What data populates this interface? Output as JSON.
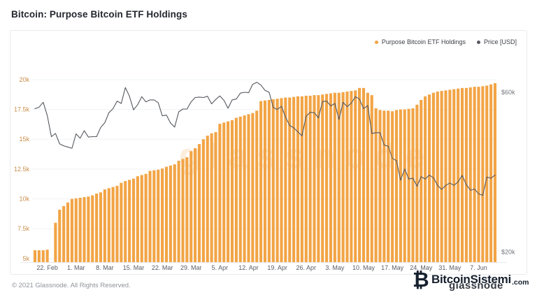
{
  "page": {
    "title": "Bitcoin: Purpose Bitcoin ETF Holdings"
  },
  "legend": {
    "items": [
      {
        "label": "Purpose Bitcoin ETF Holdings",
        "color": "#f2a445"
      },
      {
        "label": "Price [USD]",
        "color": "#55585e"
      }
    ]
  },
  "watermark": {
    "center_text": "glassnode"
  },
  "footer": {
    "copyright": "© 2021 Glassnode. All Rights Reserved.",
    "brand": {
      "bitcoin_glyph": "₿",
      "name": "BitcoinSistemi",
      "suffix": ".com",
      "glassnode_text": "glassnode"
    }
  },
  "chart_data": {
    "type": "bar+line",
    "title": "Bitcoin: Purpose Bitcoin ETF Holdings",
    "grid": "horizontal",
    "legend_position": "top-right",
    "dates": [
      "19 Feb",
      "20 Feb",
      "21 Feb",
      "22 Feb",
      "23 Feb",
      "24 Feb",
      "25 Feb",
      "26 Feb",
      "27 Feb",
      "28 Feb",
      "1 Mar",
      "2 Mar",
      "3 Mar",
      "4 Mar",
      "5 Mar",
      "6 Mar",
      "7 Mar",
      "8 Mar",
      "9 Mar",
      "10 Mar",
      "11 Mar",
      "12 Mar",
      "13 Mar",
      "14 Mar",
      "15 Mar",
      "16 Mar",
      "17 Mar",
      "18 Mar",
      "19 Mar",
      "20 Mar",
      "21 Mar",
      "22 Mar",
      "23 Mar",
      "24 Mar",
      "25 Mar",
      "26 Mar",
      "27 Mar",
      "28 Mar",
      "29 Mar",
      "30 Mar",
      "31 Mar",
      "1 Apr",
      "2 Apr",
      "3 Apr",
      "4 Apr",
      "5 Apr",
      "6 Apr",
      "7 Apr",
      "8 Apr",
      "9 Apr",
      "10 Apr",
      "11 Apr",
      "12 Apr",
      "13 Apr",
      "14 Apr",
      "15 Apr",
      "16 Apr",
      "17 Apr",
      "18 Apr",
      "19 Apr",
      "20 Apr",
      "21 Apr",
      "22 Apr",
      "23 Apr",
      "24 Apr",
      "25 Apr",
      "26 Apr",
      "27 Apr",
      "28 Apr",
      "29 Apr",
      "30 Apr",
      "1 May",
      "2 May",
      "3 May",
      "4 May",
      "5 May",
      "6 May",
      "7 May",
      "8 May",
      "9 May",
      "10 May",
      "11 May",
      "12 May",
      "13 May",
      "14 May",
      "15 May",
      "16 May",
      "17 May",
      "18 May",
      "19 May",
      "20 May",
      "21 May",
      "22 May",
      "23 May",
      "24 May",
      "25 May",
      "26 May",
      "27 May",
      "28 May",
      "29 May",
      "30 May",
      "31 May",
      "1 Jun",
      "2 Jun",
      "3 Jun",
      "4 Jun",
      "5 Jun",
      "6 Jun",
      "7 Jun",
      "8 Jun",
      "9 Jun",
      "10 Jun",
      "11 Jun"
    ],
    "series": [
      {
        "name": "Purpose Bitcoin ETF Holdings",
        "type": "bar",
        "axis": "left",
        "unit": "k BTC",
        "color": "#f2a445",
        "values": [
          5.7,
          5.7,
          5.7,
          5.75,
          null,
          8.0,
          9.1,
          9.4,
          9.7,
          10.0,
          10.05,
          10.1,
          10.15,
          10.2,
          10.3,
          10.45,
          10.55,
          10.8,
          10.9,
          11.0,
          11.1,
          11.35,
          11.5,
          11.6,
          11.7,
          11.9,
          12.0,
          12.1,
          12.35,
          12.4,
          12.45,
          12.55,
          12.7,
          12.8,
          12.9,
          13.2,
          13.35,
          13.5,
          14.0,
          14.25,
          14.6,
          15.0,
          15.3,
          15.5,
          15.6,
          16.3,
          16.4,
          16.5,
          16.6,
          16.8,
          16.9,
          17.0,
          17.1,
          17.2,
          17.4,
          18.2,
          18.25,
          18.3,
          18.35,
          18.4,
          18.45,
          18.5,
          18.5,
          18.55,
          18.6,
          18.6,
          18.65,
          18.65,
          18.7,
          18.7,
          18.75,
          18.8,
          18.85,
          18.9,
          18.9,
          18.95,
          19.0,
          19.05,
          19.1,
          19.3,
          19.3,
          18.9,
          18.7,
          17.6,
          17.45,
          17.4,
          17.4,
          17.35,
          17.45,
          17.5,
          17.5,
          17.55,
          17.6,
          17.9,
          18.3,
          18.6,
          18.75,
          18.9,
          19.0,
          19.05,
          19.1,
          19.15,
          19.2,
          19.25,
          19.3,
          19.3,
          19.35,
          19.4,
          19.4,
          19.45,
          19.5,
          19.6,
          19.7
        ]
      },
      {
        "name": "Price [USD]",
        "type": "line",
        "axis": "right",
        "unit": "k USD",
        "color": "#55585e",
        "values": [
          55.9,
          56.3,
          57.5,
          54.2,
          48.9,
          49.7,
          47.1,
          46.6,
          46.3,
          46.0,
          49.6,
          48.5,
          50.4,
          48.8,
          48.9,
          48.9,
          51.2,
          52.4,
          54.9,
          55.9,
          57.8,
          57.2,
          61.2,
          59.0,
          55.6,
          56.9,
          58.9,
          57.6,
          58.1,
          58.1,
          57.4,
          54.1,
          54.3,
          52.3,
          51.3,
          55.1,
          55.8,
          55.8,
          57.6,
          58.7,
          58.8,
          58.7,
          59.0,
          57.1,
          58.2,
          59.1,
          58.0,
          56.0,
          58.1,
          58.3,
          59.8,
          60.0,
          59.9,
          62.0,
          62.5,
          61.8,
          60.5,
          60.0,
          56.2,
          55.7,
          56.5,
          53.8,
          51.7,
          51.1,
          50.1,
          49.1,
          54.0,
          55.0,
          54.9,
          53.6,
          57.7,
          57.8,
          56.6,
          57.2,
          53.2,
          57.5,
          56.4,
          57.3,
          58.9,
          58.3,
          55.9,
          56.7,
          49.7,
          49.9,
          49.9,
          46.8,
          46.5,
          43.5,
          42.9,
          38.0,
          40.8,
          38.3,
          38.5,
          36.5,
          38.9,
          38.3,
          39.3,
          38.6,
          36.7,
          35.7,
          36.7,
          37.3,
          36.7,
          37.6,
          39.2,
          36.9,
          35.5,
          35.8,
          34.6,
          34.2,
          38.8,
          38.5,
          39.3
        ]
      }
    ],
    "left_axis": {
      "ticks": [
        5,
        7.5,
        10,
        12.5,
        15,
        17.5,
        20
      ],
      "labels": [
        "5k",
        "7.5k",
        "10k",
        "12.5k",
        "15k",
        "17.5k",
        "20k"
      ],
      "range": [
        4.7,
        21.05
      ],
      "color": "#c98e4a"
    },
    "right_axis": {
      "ticks": [
        20,
        60
      ],
      "labels": [
        "$20k",
        "$60k"
      ],
      "range": [
        17.5,
        66.3
      ],
      "color": "#73767c"
    },
    "x_ticks": [
      {
        "label": "22. Feb",
        "index": 3
      },
      {
        "label": "1. Mar",
        "index": 10
      },
      {
        "label": "8. Mar",
        "index": 17
      },
      {
        "label": "15. Mar",
        "index": 24
      },
      {
        "label": "22. Mar",
        "index": 31
      },
      {
        "label": "29. Mar",
        "index": 38
      },
      {
        "label": "5. Apr",
        "index": 45
      },
      {
        "label": "12. Apr",
        "index": 52
      },
      {
        "label": "19. Apr",
        "index": 59
      },
      {
        "label": "26. Apr",
        "index": 66
      },
      {
        "label": "3. May",
        "index": 73
      },
      {
        "label": "10. May",
        "index": 80
      },
      {
        "label": "17. May",
        "index": 87
      },
      {
        "label": "24. May",
        "index": 94
      },
      {
        "label": "31. May",
        "index": 101
      },
      {
        "label": "7. Jun",
        "index": 108
      }
    ],
    "x_axis_color": "#5b5e66"
  }
}
